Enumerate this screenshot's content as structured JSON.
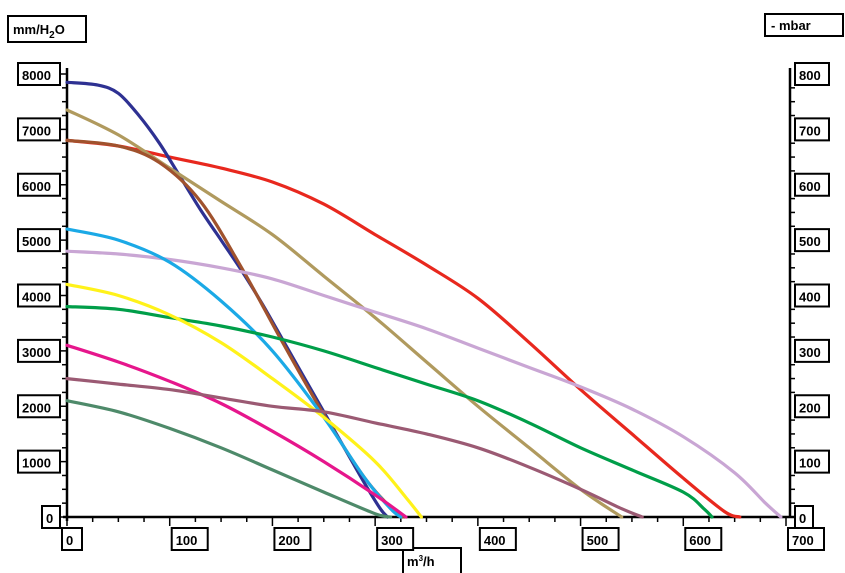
{
  "chart_data": {
    "type": "line",
    "title": "",
    "ylabel_left": "mm/H2O",
    "ylabel_right": "- mbar",
    "xlabel": "m³/h",
    "xlim": [
      0,
      700
    ],
    "ylim": [
      0,
      8000
    ],
    "ylim_right": [
      0,
      800
    ],
    "xticks": [
      "0",
      "100",
      "200",
      "300",
      "400",
      "500",
      "600",
      "700"
    ],
    "yticks_left": [
      "0",
      "1000",
      "2000",
      "3000",
      "4000",
      "5000",
      "6000",
      "7000",
      "8000"
    ],
    "yticks_right": [
      "0",
      "100",
      "200",
      "300",
      "400",
      "500",
      "600",
      "700",
      "800"
    ],
    "grid": false,
    "series": [
      {
        "color": "#e8281e",
        "x": [
          0,
          50,
          100,
          150,
          200,
          250,
          300,
          350,
          400,
          450,
          500,
          550,
          600,
          640,
          655
        ],
        "y": [
          6800,
          6700,
          6500,
          6300,
          6050,
          5650,
          5100,
          4550,
          3950,
          3150,
          2300,
          1500,
          700,
          100,
          0
        ]
      },
      {
        "color": "#2e3192",
        "x": [
          0,
          30,
          50,
          70,
          90,
          110,
          130,
          150,
          170,
          190,
          210,
          230,
          250,
          270,
          290,
          305,
          312
        ],
        "y": [
          7850,
          7800,
          7650,
          7250,
          6750,
          6150,
          5550,
          5000,
          4450,
          3850,
          3200,
          2550,
          1900,
          1250,
          600,
          150,
          0
        ]
      },
      {
        "color": "#b09a5e",
        "x": [
          0,
          50,
          100,
          150,
          200,
          250,
          300,
          350,
          400,
          450,
          500,
          540
        ],
        "y": [
          7350,
          6900,
          6300,
          5700,
          5100,
          4350,
          3600,
          2800,
          2000,
          1250,
          500,
          0
        ]
      },
      {
        "color": "#a0522d",
        "x": [
          0,
          50,
          90,
          130,
          170,
          210,
          250,
          290,
          320,
          328
        ],
        "y": [
          6800,
          6700,
          6400,
          5700,
          4500,
          3150,
          1850,
          700,
          80,
          0
        ]
      },
      {
        "color": "#c9a6d4",
        "x": [
          0,
          50,
          100,
          150,
          200,
          250,
          300,
          350,
          400,
          450,
          500,
          550,
          600,
          650,
          680,
          695
        ],
        "y": [
          4800,
          4750,
          4650,
          4500,
          4300,
          4000,
          3700,
          3400,
          3050,
          2700,
          2350,
          1950,
          1450,
          800,
          250,
          0
        ]
      },
      {
        "color": "#1ba9e6",
        "x": [
          0,
          50,
          100,
          150,
          200,
          250,
          290,
          315,
          325
        ],
        "y": [
          5200,
          5000,
          4600,
          3900,
          3000,
          1800,
          700,
          150,
          0
        ]
      },
      {
        "color": "#009e49",
        "x": [
          0,
          50,
          100,
          150,
          200,
          250,
          300,
          350,
          400,
          450,
          500,
          550,
          600,
          620,
          628
        ],
        "y": [
          3800,
          3750,
          3600,
          3450,
          3250,
          3000,
          2700,
          2400,
          2100,
          1700,
          1250,
          850,
          450,
          150,
          0
        ]
      },
      {
        "color": "#fff21a",
        "x": [
          0,
          50,
          100,
          150,
          200,
          250,
          300,
          330,
          345
        ],
        "y": [
          4200,
          4000,
          3650,
          3150,
          2500,
          1800,
          1000,
          350,
          0
        ]
      },
      {
        "color": "#e6168c",
        "x": [
          0,
          50,
          100,
          150,
          200,
          250,
          300,
          330
        ],
        "y": [
          3100,
          2800,
          2450,
          2050,
          1550,
          1000,
          400,
          0
        ]
      },
      {
        "color": "#9b5a73",
        "x": [
          0,
          50,
          100,
          150,
          200,
          250,
          300,
          350,
          400,
          450,
          500,
          540,
          560
        ],
        "y": [
          2500,
          2400,
          2300,
          2150,
          2000,
          1900,
          1700,
          1500,
          1250,
          900,
          500,
          150,
          0
        ]
      },
      {
        "color": "#4e8a6a",
        "x": [
          0,
          50,
          100,
          150,
          200,
          250,
          300,
          315
        ],
        "y": [
          2100,
          1900,
          1600,
          1250,
          850,
          450,
          60,
          0
        ]
      }
    ]
  }
}
